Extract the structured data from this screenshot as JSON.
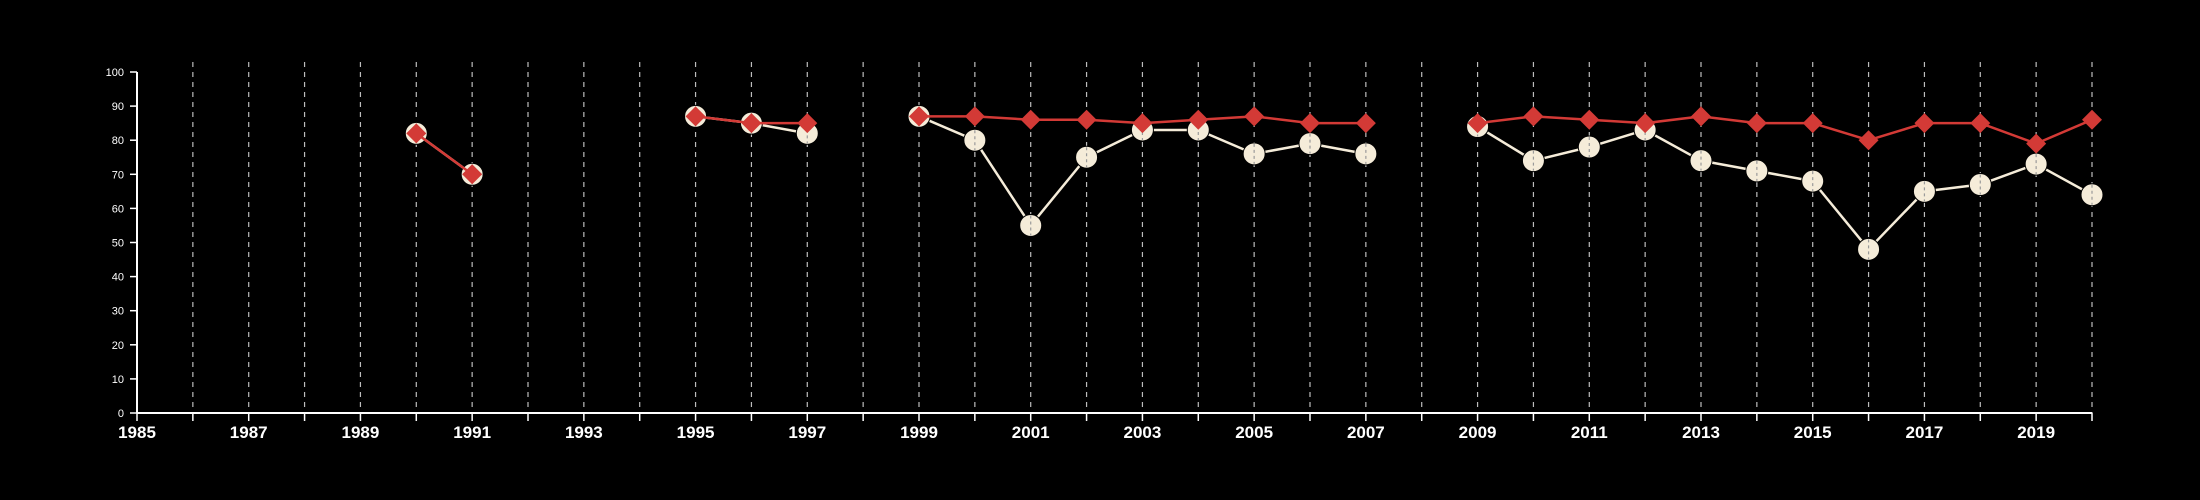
{
  "chart_data": {
    "type": "line",
    "title": "",
    "xlabel": "",
    "ylabel": "",
    "xlim": [
      1985,
      2020
    ],
    "ylim": [
      0,
      100
    ],
    "x_ticks": [
      1985,
      1987,
      1989,
      1991,
      1993,
      1995,
      1997,
      1999,
      2001,
      2003,
      2005,
      2007,
      2009,
      2011,
      2013,
      2015,
      2017,
      2019
    ],
    "y_ticks": [
      0,
      10,
      20,
      30,
      40,
      50,
      60,
      70,
      80,
      90,
      100
    ],
    "grid": {
      "vertical": true,
      "horizontal": false,
      "style": "dashed"
    },
    "background": "#000000",
    "series": [
      {
        "color": "#f5ecd9",
        "marker": "circle",
        "points": [
          [
            1990,
            82
          ],
          [
            1991,
            70
          ],
          [
            1992,
            null
          ],
          [
            1995,
            87
          ],
          [
            1996,
            85
          ],
          [
            1997,
            82
          ],
          [
            1998,
            null
          ],
          [
            1999,
            87
          ],
          [
            2000,
            80
          ],
          [
            2001,
            55
          ],
          [
            2002,
            75
          ],
          [
            2003,
            83
          ],
          [
            2004,
            83
          ],
          [
            2005,
            76
          ],
          [
            2006,
            79
          ],
          [
            2007,
            76
          ],
          [
            2008,
            null
          ],
          [
            2009,
            84
          ],
          [
            2010,
            74
          ],
          [
            2011,
            78
          ],
          [
            2012,
            83
          ],
          [
            2013,
            74
          ],
          [
            2014,
            71
          ],
          [
            2015,
            68
          ],
          [
            2016,
            48
          ],
          [
            2017,
            65
          ],
          [
            2018,
            67
          ],
          [
            2019,
            73
          ],
          [
            2020,
            64
          ]
        ]
      },
      {
        "color": "#d33a36",
        "marker": "diamond",
        "points": [
          [
            1990,
            82
          ],
          [
            1991,
            70
          ],
          [
            1992,
            null
          ],
          [
            1995,
            87
          ],
          [
            1996,
            85
          ],
          [
            1997,
            85
          ],
          [
            1998,
            null
          ],
          [
            1999,
            87
          ],
          [
            2000,
            87
          ],
          [
            2001,
            86
          ],
          [
            2002,
            86
          ],
          [
            2003,
            85
          ],
          [
            2004,
            86
          ],
          [
            2005,
            87
          ],
          [
            2006,
            85
          ],
          [
            2007,
            85
          ],
          [
            2008,
            null
          ],
          [
            2009,
            85
          ],
          [
            2010,
            87
          ],
          [
            2011,
            86
          ],
          [
            2012,
            85
          ],
          [
            2013,
            87
          ],
          [
            2014,
            85
          ],
          [
            2015,
            85
          ],
          [
            2016,
            80
          ],
          [
            2017,
            85
          ],
          [
            2018,
            85
          ],
          [
            2019,
            79
          ],
          [
            2020,
            86
          ]
        ]
      }
    ]
  }
}
